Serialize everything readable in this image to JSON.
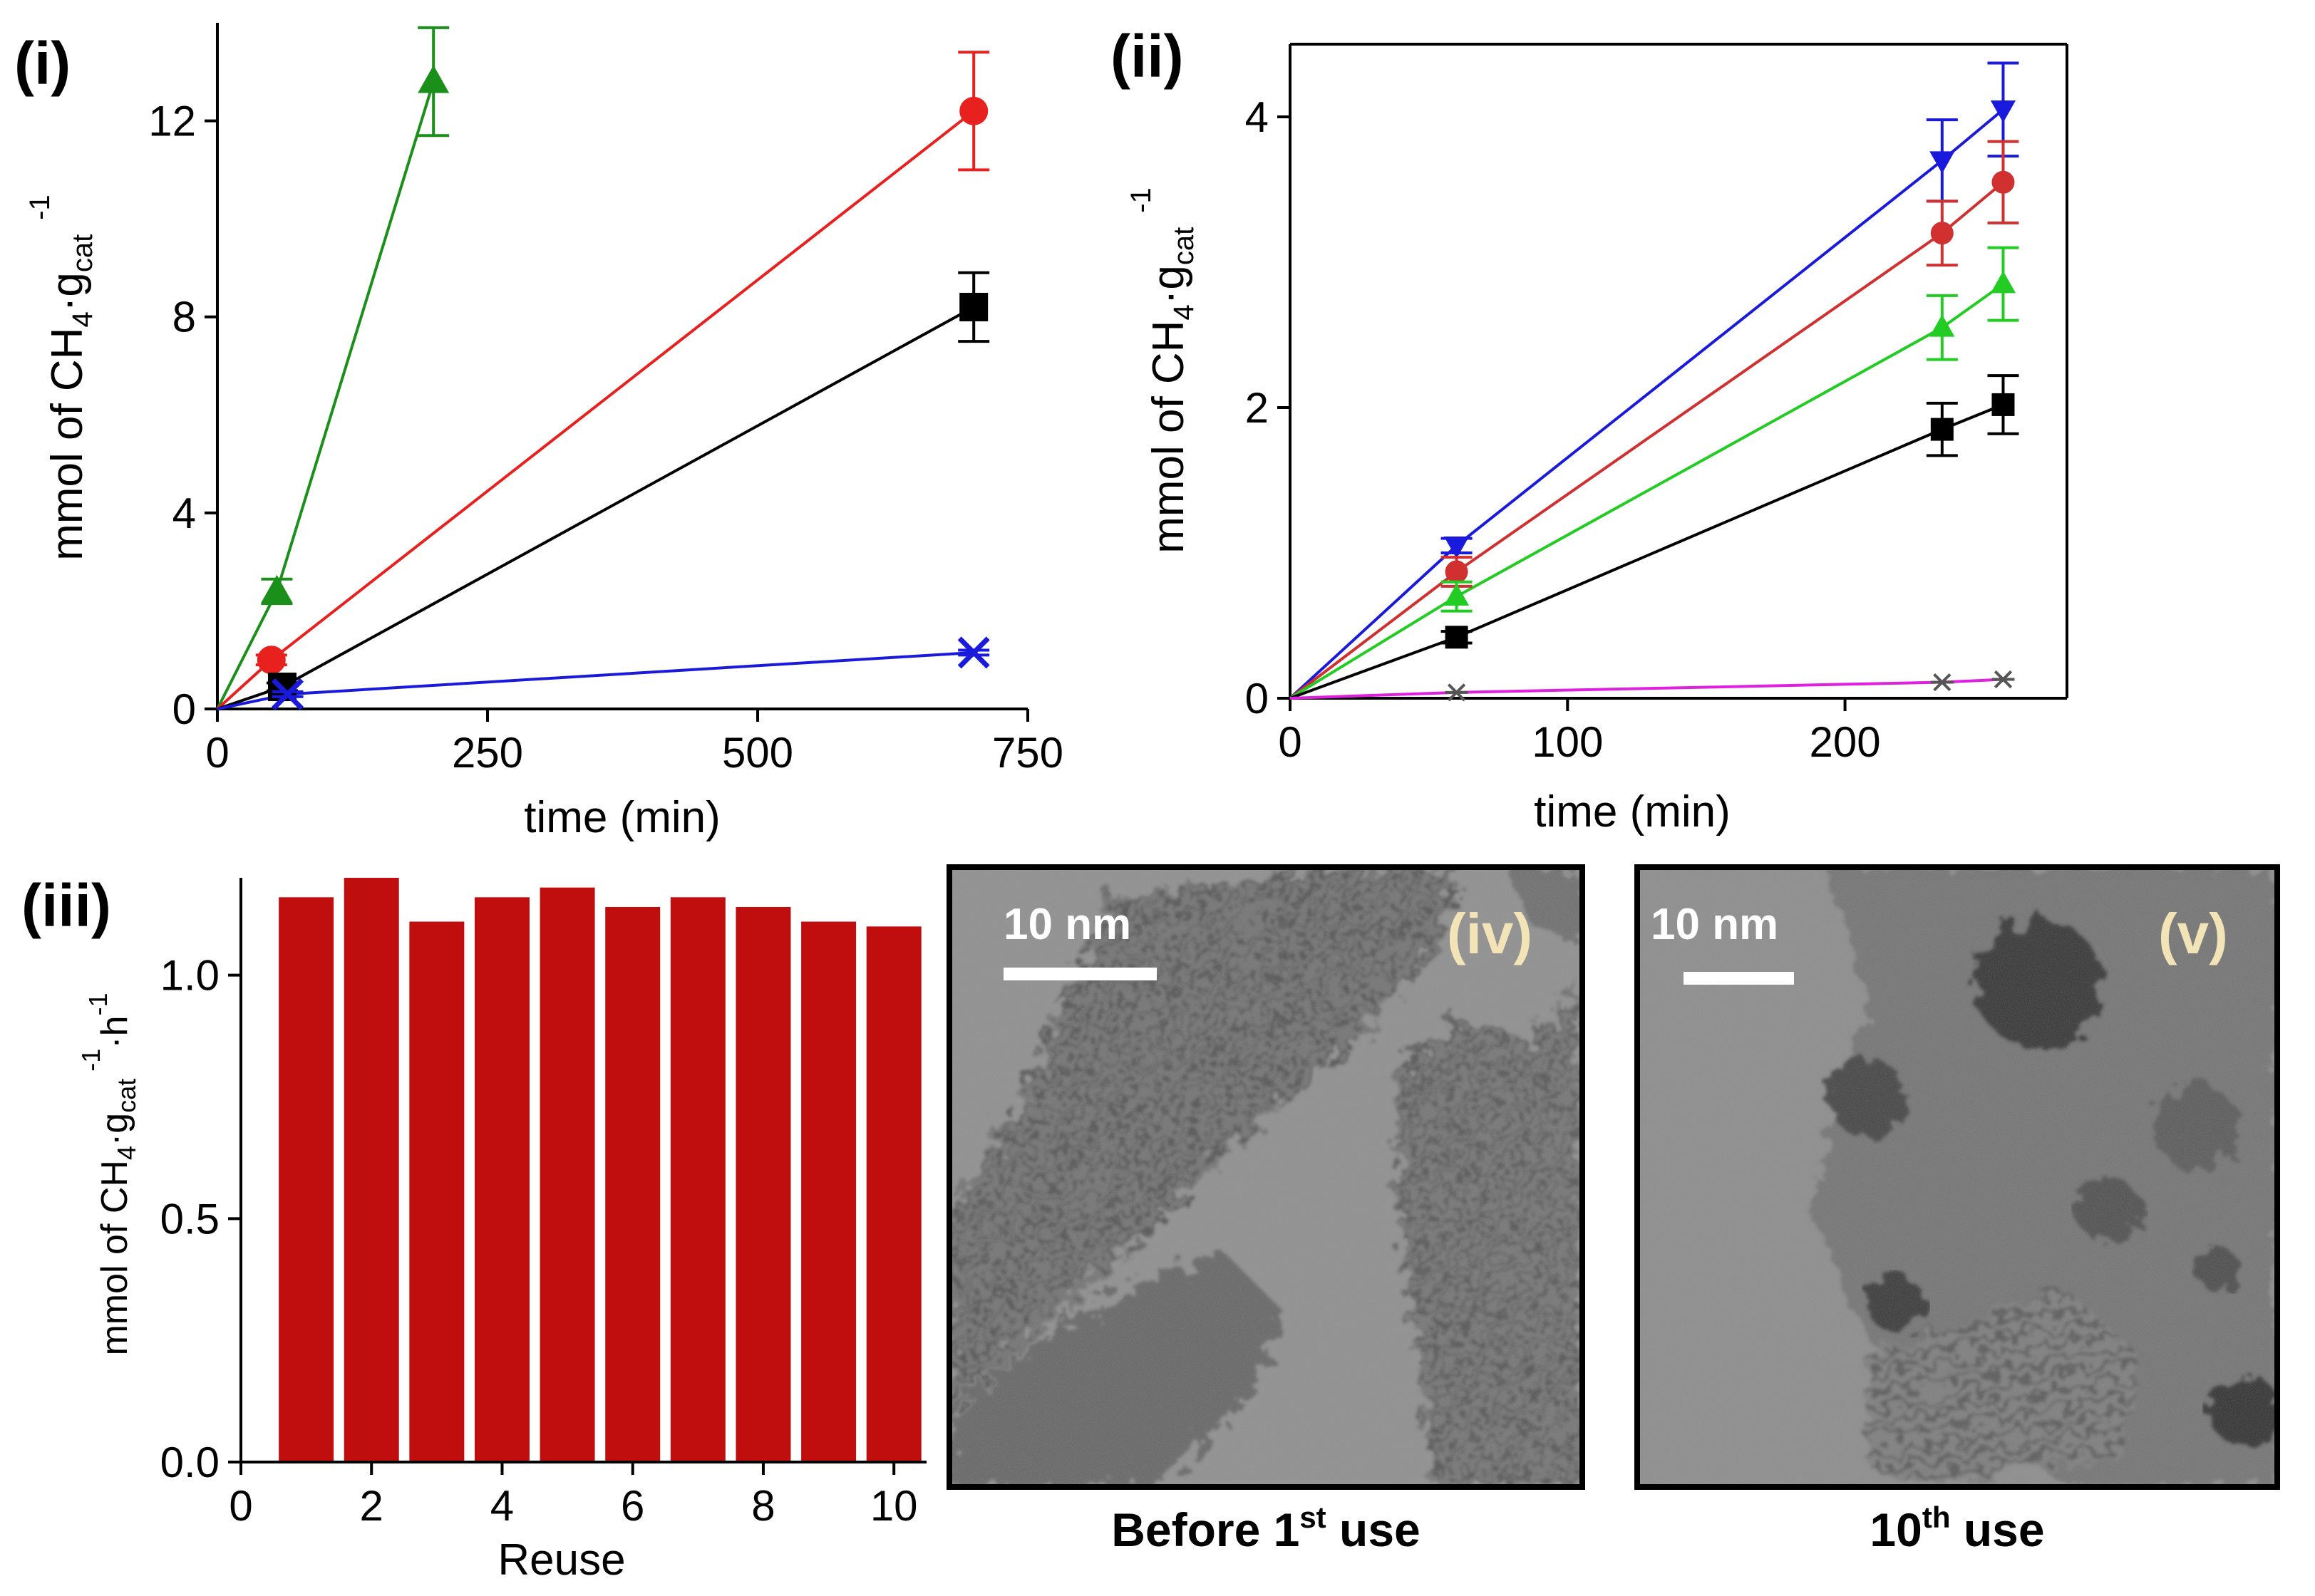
{
  "chart_data": [
    {
      "id": "i",
      "panel_label": "(i)",
      "type": "line",
      "xlabel": "time (min)",
      "ylabel": "mmol of CH4·gcat-1",
      "ylabel_parts": {
        "main": "mmol of CH",
        "sub4": "4",
        "dot": "·g",
        "subcat": "cat",
        "sup": "-1"
      },
      "xlim": [
        0,
        750
      ],
      "ylim": [
        0,
        14
      ],
      "xticks": [
        0,
        250,
        500,
        750
      ],
      "yticks": [
        0,
        4,
        8,
        12
      ],
      "series": [
        {
          "name": "green",
          "color": "#1a8f1a",
          "marker": "triangle-up",
          "x": [
            0,
            55,
            200
          ],
          "y": [
            0,
            2.4,
            12.8
          ],
          "err": [
            0,
            0.25,
            1.1
          ]
        },
        {
          "name": "red",
          "color": "#e8201e",
          "marker": "circle",
          "x": [
            0,
            50,
            700
          ],
          "y": [
            0,
            1.0,
            12.2
          ],
          "err": [
            0,
            0.1,
            1.2
          ]
        },
        {
          "name": "black",
          "color": "#000000",
          "marker": "square",
          "x": [
            0,
            60,
            700
          ],
          "y": [
            0,
            0.45,
            8.2
          ],
          "err": [
            0,
            0.08,
            0.7
          ]
        },
        {
          "name": "blue",
          "color": "#1a1adc",
          "marker": "x",
          "x": [
            0,
            65,
            700
          ],
          "y": [
            0,
            0.3,
            1.15
          ],
          "err": [
            0,
            0.05,
            0.05
          ]
        }
      ]
    },
    {
      "id": "ii",
      "panel_label": "(ii)",
      "type": "line",
      "xlabel": "time (min)",
      "ylabel": "mmol of CH4·gcat-1",
      "ylabel_parts": {
        "main": "mmol of CH",
        "sub4": "4",
        "dot": "·g",
        "subcat": "cat",
        "sup": "-1"
      },
      "xlim": [
        0,
        280
      ],
      "ylim": [
        0,
        4.5
      ],
      "xticks": [
        0,
        100,
        200
      ],
      "yticks": [
        0,
        2,
        4
      ],
      "series": [
        {
          "name": "blue",
          "color": "#1a1adc",
          "marker": "triangle-down",
          "x": [
            0,
            60,
            235,
            257
          ],
          "y": [
            0,
            1.05,
            3.7,
            4.05
          ],
          "err": [
            0,
            0.05,
            0.28,
            0.32
          ]
        },
        {
          "name": "red",
          "color": "#d03030",
          "marker": "circle",
          "x": [
            0,
            60,
            235,
            257
          ],
          "y": [
            0,
            0.87,
            3.2,
            3.55
          ],
          "err": [
            0,
            0.1,
            0.22,
            0.28
          ]
        },
        {
          "name": "green",
          "color": "#22cc22",
          "marker": "triangle-up",
          "x": [
            0,
            60,
            235,
            257
          ],
          "y": [
            0,
            0.7,
            2.55,
            2.85
          ],
          "err": [
            0,
            0.1,
            0.22,
            0.25
          ]
        },
        {
          "name": "black",
          "color": "#000000",
          "marker": "square",
          "x": [
            0,
            60,
            235,
            257
          ],
          "y": [
            0,
            0.42,
            1.85,
            2.02
          ],
          "err": [
            0,
            0.04,
            0.18,
            0.2
          ]
        },
        {
          "name": "magenta",
          "color": "#e020e0",
          "marker": "star",
          "x": [
            0,
            60,
            235,
            257
          ],
          "y": [
            0,
            0.04,
            0.11,
            0.13
          ],
          "err": [
            0,
            0,
            0,
            0
          ]
        }
      ]
    },
    {
      "id": "iii",
      "panel_label": "(iii)",
      "type": "bar",
      "xlabel": "Reuse",
      "ylabel": "mmol of CH4·gcat-1·h-1",
      "ylabel_parts": {
        "main": "mmol of CH",
        "sub4": "4",
        "dot": "·g",
        "subcat": "cat",
        "sup": "-1",
        "tail": "·h",
        "sup2": "-1"
      },
      "bar_color": "#c00d0d",
      "categories": [
        1,
        2,
        3,
        4,
        5,
        6,
        7,
        8,
        9,
        10
      ],
      "values": [
        1.16,
        1.2,
        1.11,
        1.16,
        1.18,
        1.14,
        1.16,
        1.14,
        1.11,
        1.1
      ],
      "xlim": [
        0,
        10.5
      ],
      "ylim": [
        0,
        1.2
      ],
      "xticks": [
        0,
        2,
        4,
        6,
        8,
        10
      ],
      "yticks": [
        "0.0",
        "0.5",
        "1.0"
      ],
      "ytick_values": [
        0,
        0.5,
        1.0
      ]
    }
  ],
  "tem_images": [
    {
      "label": "(iv)",
      "scale_bar": "10 nm",
      "caption_main": "Before 1",
      "caption_sup": "st",
      "caption_tail": " use"
    },
    {
      "label": "(v)",
      "scale_bar": "10 nm",
      "caption_main": "10",
      "caption_sup": "th",
      "caption_tail": " use"
    }
  ]
}
